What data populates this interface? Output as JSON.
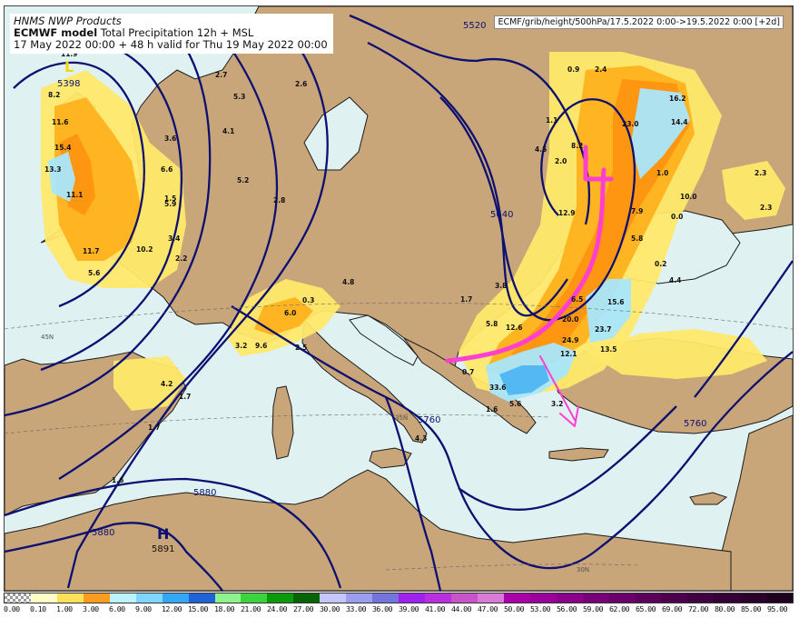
{
  "header": {
    "agency": "HNMS NWP Products",
    "model": "ECMWF model",
    "product": "Total Precipitation 12h + MSL",
    "valid_line": "17 May 2022 00:00 + 48 h valid for Thu 19 May 2022 00:00",
    "run_label": "ECMF/grib/height/500hPa/17.5.2022 0:00->19.5.2022 0:00 [+2d]"
  },
  "map": {
    "colors": {
      "sea": "#dff1f1",
      "land": "#c9a57a",
      "coast": "#1b1b1b",
      "contour": "#0d1070",
      "annotation": "#ff3fd0"
    },
    "contour_labels": [
      "5520",
      "5398",
      "5640",
      "5760",
      "5760",
      "5880",
      "5880"
    ],
    "pressure_centers": [
      {
        "letter": "L",
        "value": "5398"
      },
      {
        "letter": "H",
        "value": "5891"
      }
    ],
    "lat_labels": [
      "45N",
      "35N",
      "30N"
    ],
    "precip_values": [
      "11.9",
      "8.2",
      "11.6",
      "15.4",
      "13.3",
      "11.1",
      "11.7",
      "5.6",
      "10.2",
      "3.4",
      "5.9",
      "1.5",
      "2.2",
      "3.6",
      "6.6",
      "2.7",
      "5.3",
      "4.1",
      "2.6",
      "5.2",
      "2.8",
      "4.8",
      "0.3",
      "6.0",
      "3.2",
      "9.6",
      "2.5",
      "4.2",
      "1.7",
      "1.7",
      "1.6",
      "0.9",
      "2.4",
      "1.1",
      "4.5",
      "2.0",
      "8.2",
      "12.9",
      "23.0",
      "16.2",
      "14.4",
      "1.0",
      "10.0",
      "7.9",
      "5.8",
      "0.0",
      "2.3",
      "2.3",
      "3.8",
      "1.7",
      "5.8",
      "12.6",
      "6.5",
      "15.6",
      "20.0",
      "23.7",
      "12.1",
      "13.5",
      "24.9",
      "0.7",
      "33.6",
      "5.6",
      "3.2",
      "1.6",
      "0.2",
      "4.4",
      "4.3"
    ]
  },
  "colorbar": {
    "labels": [
      "0.00",
      "0.10",
      "1.00",
      "3.00",
      "6.00",
      "9.00",
      "12.00",
      "15.00",
      "18.00",
      "21.00",
      "24.00",
      "27.00",
      "30.00",
      "33.00",
      "36.00",
      "39.00",
      "41.00",
      "44.00",
      "47.00",
      "50.00",
      "53.00",
      "56.00",
      "59.00",
      "62.00",
      "65.00",
      "69.00",
      "72.00",
      "80.00",
      "85.00",
      "95.00"
    ],
    "colors": [
      "checker",
      "#ffffc6",
      "#ffe05a",
      "#ff9b1e",
      "#bdf2ff",
      "#7fd7ff",
      "#33a7f5",
      "#1f63d6",
      "#8ef28e",
      "#3cd43c",
      "#0a9a0a",
      "#066406",
      "#c6c6ff",
      "#9c9cf0",
      "#7474dd",
      "#a020f0",
      "#b92fe0",
      "#c855c8",
      "#d77bd7",
      "#aa00aa",
      "#9a009a",
      "#8a008a",
      "#780078",
      "#6a006a",
      "#5c005c",
      "#4e004e",
      "#410041",
      "#350035",
      "#2b002b",
      "#200020"
    ]
  }
}
